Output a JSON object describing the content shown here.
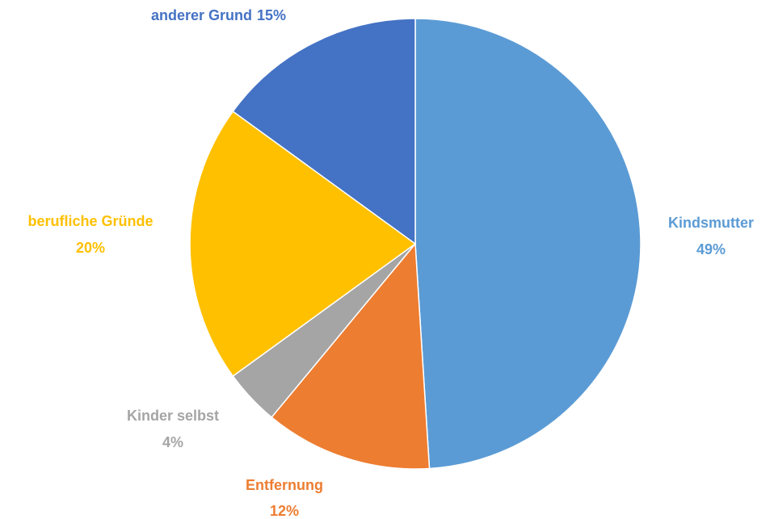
{
  "chart_data": {
    "type": "pie",
    "categories": [
      "Kindsmutter",
      "Entfernung",
      "Kinder selbst",
      "berufliche Gründe",
      "anderer Grund"
    ],
    "values": [
      49,
      12,
      4,
      20,
      15
    ],
    "value_labels": [
      "49%",
      "12%",
      "4%",
      "20%",
      "15%"
    ],
    "colors": [
      "#5b9bd5",
      "#ed7d31",
      "#a5a5a5",
      "#ffc000",
      "#4472c4"
    ]
  }
}
